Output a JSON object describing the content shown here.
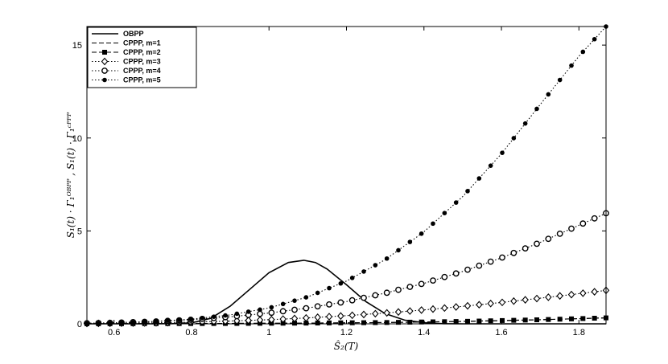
{
  "chart_data": {
    "type": "line",
    "xlabel": "Ŝ₂(T)",
    "ylabel": "S₁(t) · Γ₁ᴼᴮᴾᴾ , S₁(t) · Γ₁ᶜᴾᴾᴾ",
    "xlim": [
      0.53,
      1.87
    ],
    "ylim": [
      0,
      16
    ],
    "xticks": [
      0.6,
      0.8,
      1,
      1.2,
      1.4,
      1.6,
      1.8
    ],
    "yticks": [
      0,
      5,
      10,
      15
    ],
    "legend_position": "top-left",
    "grid": false,
    "series": [
      {
        "name": "OBPP",
        "style": "solid",
        "marker": "none",
        "x": [
          0.53,
          0.6,
          0.7,
          0.75,
          0.8,
          0.85,
          0.9,
          0.95,
          1.0,
          1.05,
          1.09,
          1.12,
          1.15,
          1.2,
          1.25,
          1.3,
          1.35,
          1.4,
          1.45,
          1.5,
          1.6,
          1.7,
          1.8,
          1.87
        ],
        "y": [
          0,
          0,
          0,
          0.01,
          0.05,
          0.3,
          0.95,
          1.85,
          2.75,
          3.3,
          3.42,
          3.3,
          2.95,
          2.1,
          1.2,
          0.55,
          0.2,
          0.06,
          0.01,
          0,
          0,
          0,
          0,
          0
        ]
      },
      {
        "name": "CPPP, m=1",
        "style": "dashed",
        "marker": "none",
        "x": [
          0.53,
          0.7,
          0.9,
          1.1,
          1.3,
          1.5,
          1.7,
          1.87
        ],
        "y": [
          0.005,
          0.01,
          0.02,
          0.04,
          0.07,
          0.13,
          0.22,
          0.32
        ]
      },
      {
        "name": "CPPP, m=2",
        "style": "dashed",
        "marker": "square",
        "x": [
          0.53,
          0.7,
          0.9,
          1.1,
          1.3,
          1.5,
          1.7,
          1.87
        ],
        "y": [
          0.005,
          0.01,
          0.02,
          0.04,
          0.07,
          0.13,
          0.22,
          0.32
        ]
      },
      {
        "name": "CPPP, m=3",
        "style": "dotted",
        "marker": "diamond",
        "x": [
          0.53,
          0.6,
          0.7,
          0.8,
          0.9,
          1.0,
          1.1,
          1.2,
          1.3,
          1.4,
          1.5,
          1.6,
          1.7,
          1.8,
          1.87
        ],
        "y": [
          0.02,
          0.03,
          0.05,
          0.09,
          0.15,
          0.22,
          0.32,
          0.44,
          0.58,
          0.75,
          0.94,
          1.15,
          1.38,
          1.62,
          1.8
        ]
      },
      {
        "name": "CPPP, m=4",
        "style": "dotted",
        "marker": "circle",
        "x": [
          0.53,
          0.6,
          0.7,
          0.8,
          0.9,
          1.0,
          1.1,
          1.2,
          1.3,
          1.4,
          1.5,
          1.6,
          1.7,
          1.8,
          1.87
        ],
        "y": [
          0.03,
          0.06,
          0.12,
          0.22,
          0.38,
          0.58,
          0.85,
          1.2,
          1.65,
          2.18,
          2.82,
          3.55,
          4.38,
          5.3,
          5.95
        ]
      },
      {
        "name": "CPPP, m=5",
        "style": "dotted",
        "marker": "dot",
        "x": [
          0.53,
          0.6,
          0.7,
          0.8,
          0.9,
          1.0,
          1.1,
          1.2,
          1.3,
          1.4,
          1.5,
          1.6,
          1.7,
          1.8,
          1.87
        ],
        "y": [
          0.02,
          0.05,
          0.12,
          0.25,
          0.48,
          0.85,
          1.45,
          2.3,
          3.45,
          4.95,
          6.85,
          9.15,
          11.8,
          14.4,
          16.0
        ]
      }
    ]
  }
}
